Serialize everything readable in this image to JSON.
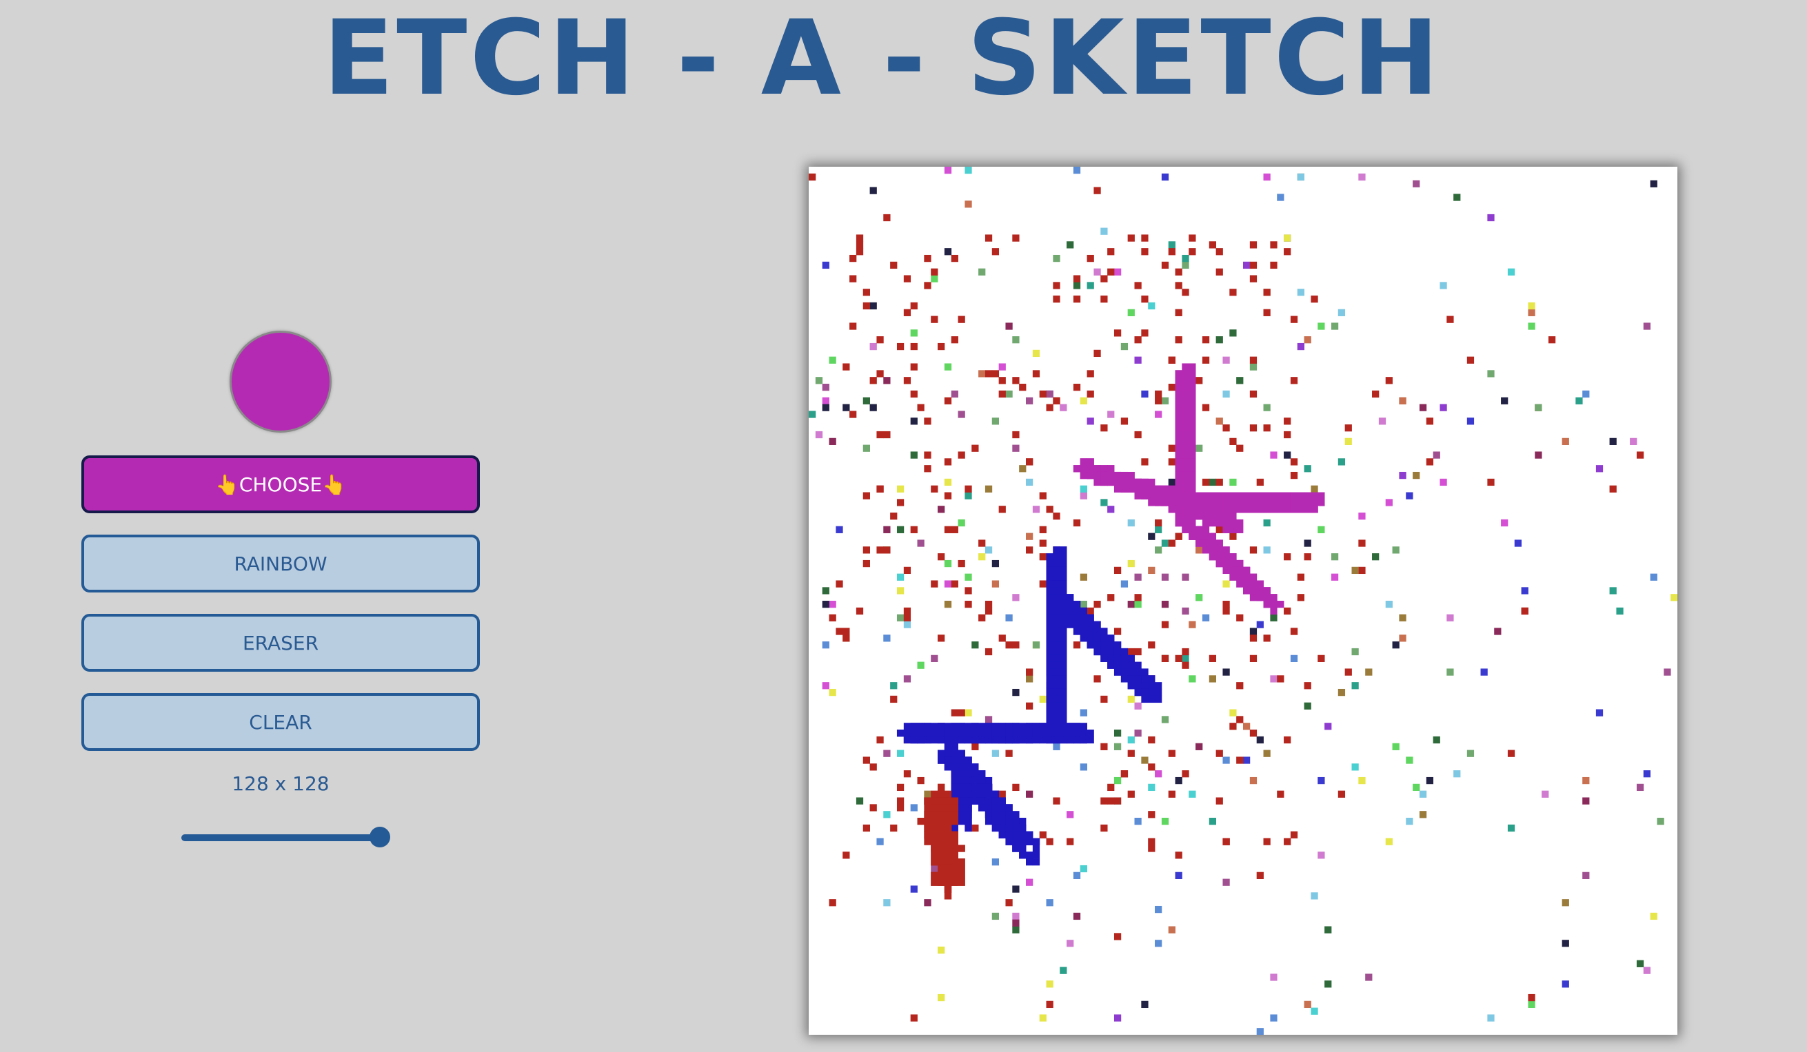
{
  "title": "ETCH - A - SKETCH",
  "current_color": "#b52ab3",
  "buttons": {
    "choose": "👆CHOOSE👆",
    "rainbow": "RAINBOW",
    "eraser": "ERASER",
    "clear": "CLEAR"
  },
  "grid": {
    "label": "128 x 128",
    "size": 128,
    "slider_fraction": 1.0
  },
  "colors": {
    "background": "#d3d3d3",
    "accent": "#2a5a92",
    "button_bg": "#b9cde0",
    "blue_stroke": "#1f18c0",
    "red_stroke": "#b5261e",
    "magenta_stroke": "#b52ab3"
  },
  "icons": {
    "choose": "pointing-up-hand-icon"
  }
}
